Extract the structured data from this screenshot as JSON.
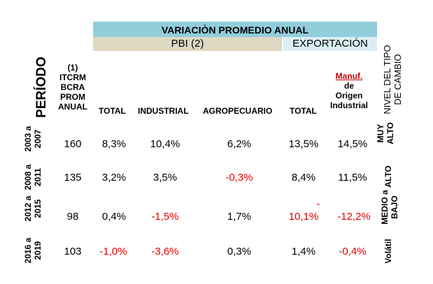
{
  "header": {
    "title": "VARIACIÒN PROMEDIO ANUAL",
    "pbi": "PBI  (2)",
    "exportacion": "EXPORTACIÓN",
    "periodo": "PERÍODO",
    "nivel_tipo_cambio": [
      "NIVEL DEL TIPO",
      "DE CAMBIO"
    ],
    "itcrm": [
      "(1)",
      "ITCRM",
      "BCRA",
      "PROM",
      "ANUAL"
    ],
    "manuf": [
      "Manuf.",
      "de",
      "Origen",
      "Industrial"
    ],
    "cols": {
      "total": "TOTAL",
      "industrial": "INDUSTRIAL",
      "agropecuario": "AGROPECUARIO",
      "exp_total": "TOTAL"
    }
  },
  "rows": [
    {
      "periodo": [
        "2003 a",
        "2007"
      ],
      "itcrm": "160",
      "total": "8,3%",
      "industrial": "10,4%",
      "agropecuario": "6,2%",
      "exp_total": "13,5%",
      "manuf": "14,5%",
      "nivel": [
        "MUY",
        "ALTO"
      ]
    },
    {
      "periodo": [
        "2008 a",
        "2011"
      ],
      "itcrm": "135",
      "total": "3,2%",
      "industrial": "3,5%",
      "agropecuario": "-0,3%",
      "exp_total": "8,4%",
      "manuf": "11,5%",
      "nivel": [
        "ALTO"
      ]
    },
    {
      "periodo": [
        "2012 a",
        "2015"
      ],
      "itcrm": "98",
      "total": "0,4%",
      "industrial": "-1,5%",
      "agropecuario": "1,7%",
      "exp_total_sign": "-",
      "exp_total": "10,1%",
      "manuf": "-12,2%",
      "nivel": [
        "MEDIO a",
        "BAJO"
      ]
    },
    {
      "periodo": [
        "2016 a",
        "2019"
      ],
      "itcrm": "103",
      "total": "-1,0%",
      "industrial": "-3,6%",
      "agropecuario": "0,3%",
      "exp_total": "1,4%",
      "manuf": "-0,4%",
      "nivel": [
        "Volátil"
      ]
    }
  ],
  "colors": {
    "title_band": "#92cddc",
    "pbi_band": "#ddd9c3",
    "exp_band": "#dbeef3",
    "negative": "#e60000"
  }
}
